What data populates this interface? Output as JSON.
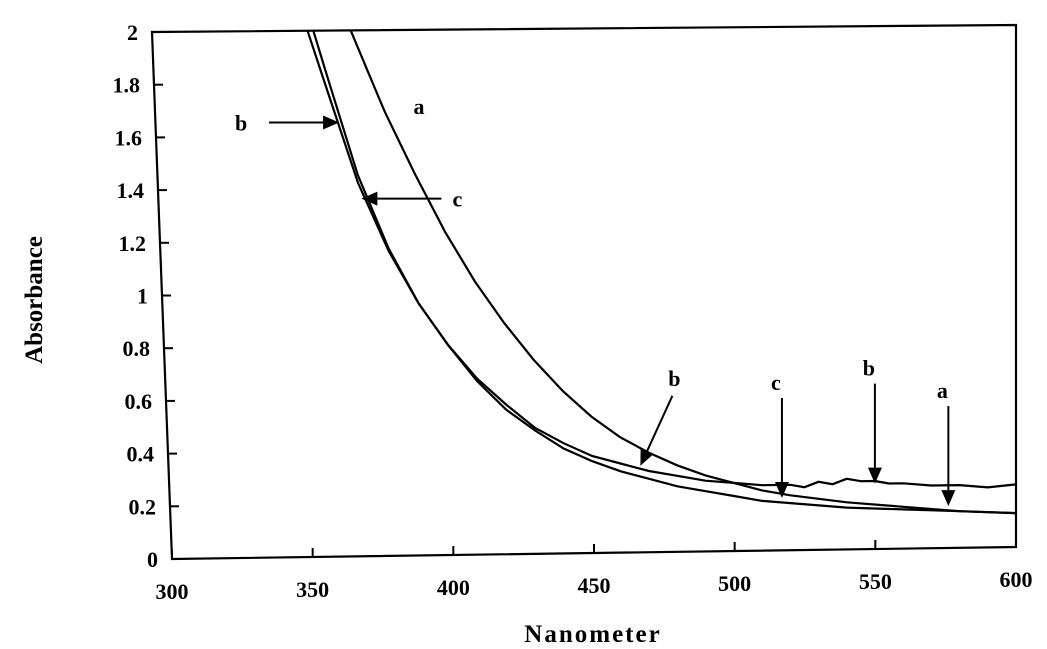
{
  "chart_data": {
    "type": "line",
    "title": "",
    "xlabel": "Nanometer",
    "ylabel": "Absorbance",
    "xlim": [
      300,
      600
    ],
    "ylim": [
      0,
      2
    ],
    "xticks": [
      300,
      350,
      400,
      450,
      500,
      550,
      600
    ],
    "xtick_labels": [
      "300",
      "350",
      "400",
      "450",
      "500",
      "550",
      "600"
    ],
    "yticks": [
      0,
      0.2,
      0.4,
      0.6,
      0.8,
      1,
      1.2,
      1.4,
      1.6,
      1.8,
      2
    ],
    "ytick_labels": [
      "0",
      "0.2",
      "0.4",
      "0.6",
      "0.8",
      "1",
      "1.2",
      "1.4",
      "1.6",
      "1.8",
      "2"
    ],
    "grid": false,
    "legend": "none",
    "series": [
      {
        "name": "a",
        "x": [
          369,
          375,
          380,
          390,
          400,
          410,
          420,
          430,
          440,
          450,
          460,
          470,
          480,
          490,
          500,
          510,
          520,
          540,
          560,
          580,
          600
        ],
        "y": [
          2.0,
          1.83,
          1.69,
          1.45,
          1.23,
          1.04,
          0.88,
          0.74,
          0.62,
          0.52,
          0.44,
          0.38,
          0.33,
          0.29,
          0.26,
          0.23,
          0.21,
          0.18,
          0.16,
          0.14,
          0.13
        ]
      },
      {
        "name": "b",
        "x": [
          354,
          360,
          370,
          380,
          390,
          400,
          410,
          420,
          430,
          440,
          450,
          460,
          470,
          480,
          490,
          500,
          510,
          520,
          525,
          530,
          535,
          540,
          545,
          550,
          555,
          560,
          570,
          580,
          590,
          600
        ],
        "y": [
          2.0,
          1.78,
          1.42,
          1.16,
          0.96,
          0.8,
          0.67,
          0.57,
          0.48,
          0.42,
          0.37,
          0.34,
          0.31,
          0.29,
          0.27,
          0.26,
          0.25,
          0.25,
          0.24,
          0.26,
          0.25,
          0.27,
          0.26,
          0.26,
          0.25,
          0.25,
          0.24,
          0.24,
          0.23,
          0.24
        ]
      },
      {
        "name": "c",
        "x": [
          356,
          360,
          370,
          380,
          390,
          400,
          410,
          420,
          430,
          440,
          450,
          460,
          470,
          480,
          490,
          500,
          510,
          520,
          540,
          560,
          580,
          600
        ],
        "y": [
          2.0,
          1.84,
          1.45,
          1.17,
          0.96,
          0.8,
          0.66,
          0.55,
          0.47,
          0.4,
          0.35,
          0.31,
          0.28,
          0.25,
          0.23,
          0.21,
          0.19,
          0.18,
          0.16,
          0.15,
          0.14,
          0.13
        ]
      }
    ],
    "annotations": [
      {
        "label": "b",
        "target_x": 364,
        "target_y": 1.65,
        "direction": "from-left"
      },
      {
        "label": "a",
        "near_x": 390,
        "near_y": 1.68,
        "direction": "none"
      },
      {
        "label": "c",
        "target_x": 371,
        "target_y": 1.36,
        "direction": "from-right"
      },
      {
        "label": "b",
        "target_x": 467,
        "target_y": 0.33,
        "direction": "from-upper-right"
      },
      {
        "label": "c",
        "target_x": 517,
        "target_y": 0.2,
        "direction": "from-above"
      },
      {
        "label": "b",
        "target_x": 550,
        "target_y": 0.25,
        "direction": "from-above"
      },
      {
        "label": "a",
        "target_x": 576,
        "target_y": 0.16,
        "direction": "from-above"
      }
    ]
  }
}
